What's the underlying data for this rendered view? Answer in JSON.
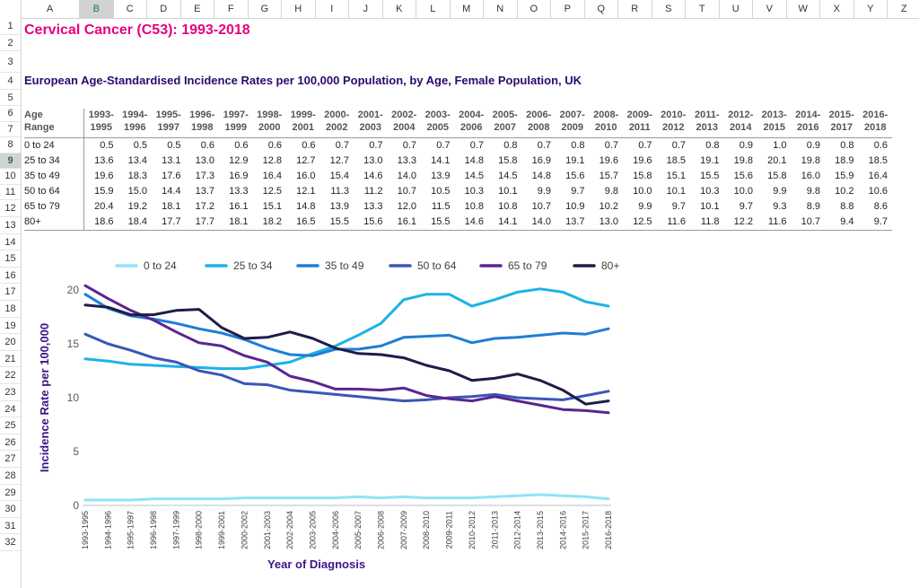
{
  "sheet": {
    "columns": [
      "A",
      "B",
      "C",
      "D",
      "E",
      "F",
      "G",
      "H",
      "I",
      "J",
      "K",
      "L",
      "M",
      "N",
      "O",
      "P",
      "Q",
      "R",
      "S",
      "T",
      "U",
      "V",
      "W",
      "X",
      "Y",
      "Z"
    ],
    "rows": [
      "1",
      "2",
      "3",
      "4",
      "5",
      "6",
      "7",
      "8",
      "9",
      "10",
      "11",
      "12",
      "13",
      "14",
      "15",
      "16",
      "17",
      "18",
      "19",
      "20",
      "21",
      "22",
      "23",
      "24",
      "25",
      "26",
      "27",
      "28",
      "29",
      "30",
      "31",
      "32"
    ],
    "selected_row": "9",
    "selected_col": "B"
  },
  "title": "Cervical Cancer (C53): 1993-2018",
  "subtitle": "European Age-Standardised Incidence Rates per 100,000 Population, by Age, Female Population, UK",
  "table": {
    "header_label": [
      "Age",
      "Range"
    ],
    "periods": [
      [
        "1993-",
        "1995"
      ],
      [
        "1994-",
        "1996"
      ],
      [
        "1995-",
        "1997"
      ],
      [
        "1996-",
        "1998"
      ],
      [
        "1997-",
        "1999"
      ],
      [
        "1998-",
        "2000"
      ],
      [
        "1999-",
        "2001"
      ],
      [
        "2000-",
        "2002"
      ],
      [
        "2001-",
        "2003"
      ],
      [
        "2002-",
        "2004"
      ],
      [
        "2003-",
        "2005"
      ],
      [
        "2004-",
        "2006"
      ],
      [
        "2005-",
        "2007"
      ],
      [
        "2006-",
        "2008"
      ],
      [
        "2007-",
        "2009"
      ],
      [
        "2008-",
        "2010"
      ],
      [
        "2009-",
        "2011"
      ],
      [
        "2010-",
        "2012"
      ],
      [
        "2011-",
        "2013"
      ],
      [
        "2012-",
        "2014"
      ],
      [
        "2013-",
        "2015"
      ],
      [
        "2014-",
        "2016"
      ],
      [
        "2015-",
        "2017"
      ],
      [
        "2016-",
        "2018"
      ]
    ],
    "rows": [
      {
        "label": "0 to 24",
        "values": [
          "0.5",
          "0.5",
          "0.5",
          "0.6",
          "0.6",
          "0.6",
          "0.6",
          "0.7",
          "0.7",
          "0.7",
          "0.7",
          "0.7",
          "0.8",
          "0.7",
          "0.8",
          "0.7",
          "0.7",
          "0.7",
          "0.8",
          "0.9",
          "1.0",
          "0.9",
          "0.8",
          "0.6"
        ]
      },
      {
        "label": "25 to 34",
        "values": [
          "13.6",
          "13.4",
          "13.1",
          "13.0",
          "12.9",
          "12.8",
          "12.7",
          "12.7",
          "13.0",
          "13.3",
          "14.1",
          "14.8",
          "15.8",
          "16.9",
          "19.1",
          "19.6",
          "19.6",
          "18.5",
          "19.1",
          "19.8",
          "20.1",
          "19.8",
          "18.9",
          "18.5"
        ]
      },
      {
        "label": "35 to 49",
        "values": [
          "19.6",
          "18.3",
          "17.6",
          "17.3",
          "16.9",
          "16.4",
          "16.0",
          "15.4",
          "14.6",
          "14.0",
          "13.9",
          "14.5",
          "14.5",
          "14.8",
          "15.6",
          "15.7",
          "15.8",
          "15.1",
          "15.5",
          "15.6",
          "15.8",
          "16.0",
          "15.9",
          "16.4"
        ]
      },
      {
        "label": "50 to 64",
        "values": [
          "15.9",
          "15.0",
          "14.4",
          "13.7",
          "13.3",
          "12.5",
          "12.1",
          "11.3",
          "11.2",
          "10.7",
          "10.5",
          "10.3",
          "10.1",
          "9.9",
          "9.7",
          "9.8",
          "10.0",
          "10.1",
          "10.3",
          "10.0",
          "9.9",
          "9.8",
          "10.2",
          "10.6"
        ]
      },
      {
        "label": "65 to 79",
        "values": [
          "20.4",
          "19.2",
          "18.1",
          "17.2",
          "16.1",
          "15.1",
          "14.8",
          "13.9",
          "13.3",
          "12.0",
          "11.5",
          "10.8",
          "10.8",
          "10.7",
          "10.9",
          "10.2",
          "9.9",
          "9.7",
          "10.1",
          "9.7",
          "9.3",
          "8.9",
          "8.8",
          "8.6"
        ]
      },
      {
        "label": "80+",
        "values": [
          "18.6",
          "18.4",
          "17.7",
          "17.7",
          "18.1",
          "18.2",
          "16.5",
          "15.5",
          "15.6",
          "16.1",
          "15.5",
          "14.6",
          "14.1",
          "14.0",
          "13.7",
          "13.0",
          "12.5",
          "11.6",
          "11.8",
          "12.2",
          "11.6",
          "10.7",
          "9.4",
          "9.7"
        ]
      }
    ]
  },
  "chart_data": {
    "type": "line",
    "title": "",
    "xlabel": "Year of Diagnosis",
    "ylabel": "Incidence Rate per 100,000",
    "ylim": [
      0,
      20
    ],
    "yticks": [
      "0",
      "5",
      "10",
      "15",
      "20"
    ],
    "grid": false,
    "legend_position": "top",
    "categories": [
      "1993-1995",
      "1994-1996",
      "1995-1997",
      "1996-1998",
      "1997-1999",
      "1998-2000",
      "1999-2001",
      "2000-2002",
      "2001-2003",
      "2002-2004",
      "2003-2005",
      "2004-2006",
      "2005-2007",
      "2006-2008",
      "2007-2009",
      "2008-2010",
      "2009-2011",
      "2010-2012",
      "2011-2013",
      "2012-2014",
      "2013-2015",
      "2014-2016",
      "2015-2017",
      "2016-2018"
    ],
    "series": [
      {
        "name": "0 to 24",
        "color": "#8fe3f8",
        "values": [
          0.5,
          0.5,
          0.5,
          0.6,
          0.6,
          0.6,
          0.6,
          0.7,
          0.7,
          0.7,
          0.7,
          0.7,
          0.8,
          0.7,
          0.8,
          0.7,
          0.7,
          0.7,
          0.8,
          0.9,
          1.0,
          0.9,
          0.8,
          0.6
        ]
      },
      {
        "name": "25 to 34",
        "color": "#1ab3e6",
        "values": [
          13.6,
          13.4,
          13.1,
          13.0,
          12.9,
          12.8,
          12.7,
          12.7,
          13.0,
          13.3,
          14.1,
          14.8,
          15.8,
          16.9,
          19.1,
          19.6,
          19.6,
          18.5,
          19.1,
          19.8,
          20.1,
          19.8,
          18.9,
          18.5
        ]
      },
      {
        "name": "35 to 49",
        "color": "#1f7ed4",
        "values": [
          19.6,
          18.3,
          17.6,
          17.3,
          16.9,
          16.4,
          16.0,
          15.4,
          14.6,
          14.0,
          13.9,
          14.5,
          14.5,
          14.8,
          15.6,
          15.7,
          15.8,
          15.1,
          15.5,
          15.6,
          15.8,
          16.0,
          15.9,
          16.4
        ]
      },
      {
        "name": "50 to 64",
        "color": "#3a56b8",
        "values": [
          15.9,
          15.0,
          14.4,
          13.7,
          13.3,
          12.5,
          12.1,
          11.3,
          11.2,
          10.7,
          10.5,
          10.3,
          10.1,
          9.9,
          9.7,
          9.8,
          10.0,
          10.1,
          10.3,
          10.0,
          9.9,
          9.8,
          10.2,
          10.6
        ]
      },
      {
        "name": "65 to 79",
        "color": "#5a2590",
        "values": [
          20.4,
          19.2,
          18.1,
          17.2,
          16.1,
          15.1,
          14.8,
          13.9,
          13.3,
          12.0,
          11.5,
          10.8,
          10.8,
          10.7,
          10.9,
          10.2,
          9.9,
          9.7,
          10.1,
          9.7,
          9.3,
          8.9,
          8.8,
          8.6
        ]
      },
      {
        "name": "80+",
        "color": "#1e1c48",
        "values": [
          18.6,
          18.4,
          17.7,
          17.7,
          18.1,
          18.2,
          16.5,
          15.5,
          15.6,
          16.1,
          15.5,
          14.6,
          14.1,
          14.0,
          13.7,
          13.0,
          12.5,
          11.6,
          11.8,
          12.2,
          11.6,
          10.7,
          9.4,
          9.7
        ]
      }
    ]
  }
}
